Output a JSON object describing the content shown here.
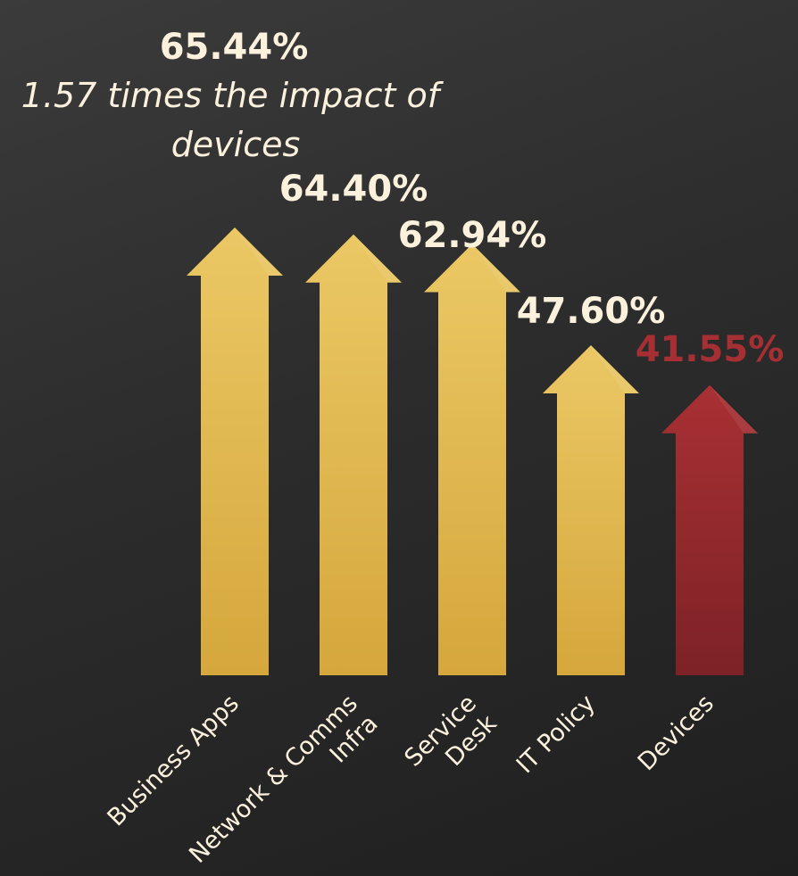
{
  "chart_data": {
    "type": "bar",
    "categories": [
      "Business Apps",
      "Network & Comms Infra",
      "Service Desk",
      "IT Policy",
      "Devices"
    ],
    "category_lines": [
      [
        "Business Apps"
      ],
      [
        "Network & Comms",
        "Infra"
      ],
      [
        "Service",
        "Desk"
      ],
      [
        "IT Policy"
      ],
      [
        "Devices"
      ]
    ],
    "values": [
      65.44,
      64.4,
      62.94,
      47.6,
      41.55
    ],
    "value_labels": [
      "65.44%",
      "64.40%",
      "62.94%",
      "47.60%",
      "41.55%"
    ],
    "highlight_index": 4,
    "annotation_lines": [
      "1.57 times the impact of",
      "devices"
    ],
    "title": "",
    "xlabel": "",
    "ylabel": "",
    "mark_shape": "arrow",
    "grid": false,
    "legend": "none",
    "colors": {
      "bar": "#e3b950",
      "bar_dark": "#d5a73c",
      "highlight": "#a52f33",
      "highlight_dark": "#7f2326",
      "text": "#fbf1dc",
      "background": "#2c2c2c"
    }
  }
}
